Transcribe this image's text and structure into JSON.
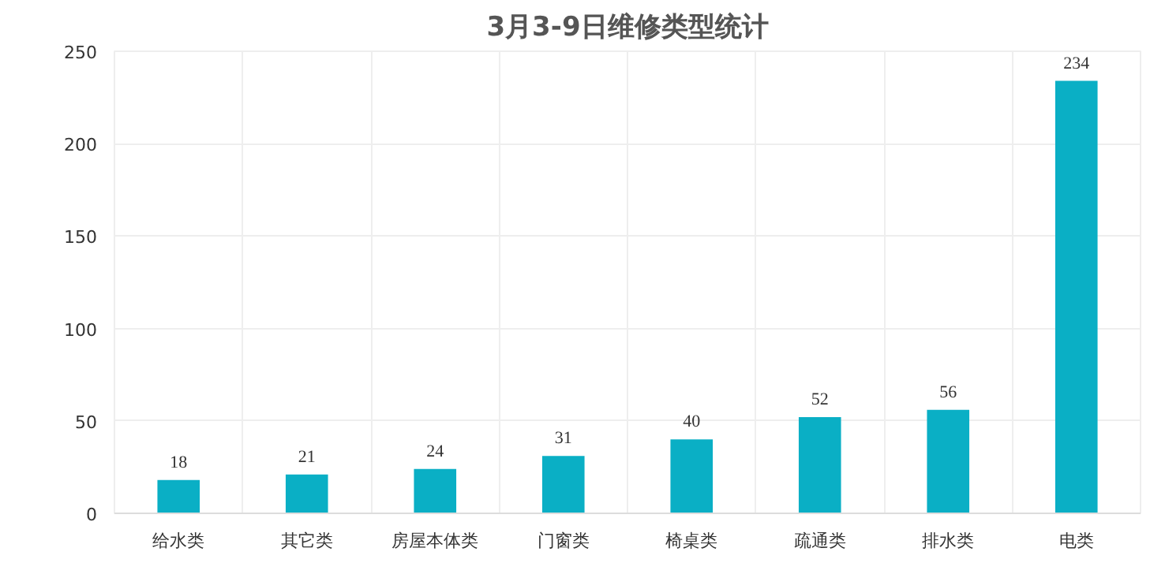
{
  "chart_data": {
    "type": "bar",
    "title": "3月3-9日维修类型统计",
    "categories": [
      "给水类",
      "其它类",
      "房屋本体类",
      "门窗类",
      "椅桌类",
      "疏通类",
      "排水类",
      "电类"
    ],
    "values": [
      18,
      21,
      24,
      31,
      40,
      52,
      56,
      234
    ],
    "color": "#0aafc5",
    "ylim": [
      0,
      250
    ],
    "yticks": [
      0,
      50,
      100,
      150,
      200,
      250
    ],
    "grid": true,
    "data_labels": true
  }
}
